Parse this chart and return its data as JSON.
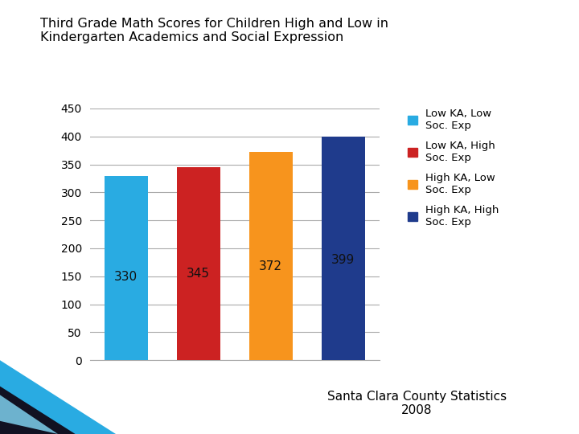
{
  "title_line1": "Third Grade Math Scores for Children High and Low in",
  "title_line2": "Kindergarten Academics and Social Expression",
  "values": [
    330,
    345,
    372,
    399
  ],
  "colors": [
    "#29ABE2",
    "#CC2222",
    "#F7941D",
    "#1F3B8C"
  ],
  "legend_labels": [
    "Low KA, Low\nSoc. Exp",
    "Low KA, High\nSoc. Exp",
    "High KA, Low\nSoc. Exp",
    "High KA, High\nSoc. Exp"
  ],
  "legend_colors": [
    "#29ABE2",
    "#CC2222",
    "#F7941D",
    "#1F3B8C"
  ],
  "ylim": [
    0,
    450
  ],
  "yticks": [
    0,
    50,
    100,
    150,
    200,
    250,
    300,
    350,
    400,
    450
  ],
  "bar_label_color": "#111111",
  "grid_color": "#AAAAAA",
  "bg_color": "#FFFFFF",
  "footer_line1": "Santa Clara County Statistics",
  "footer_line2": "2008",
  "title_fontsize": 11.5,
  "bar_label_fontsize": 11,
  "legend_fontsize": 9.5,
  "footer_fontsize": 11,
  "ytick_fontsize": 10,
  "deco_teal": "#29ABE2",
  "deco_dark": "#111122",
  "deco_light": "#7ecfed"
}
